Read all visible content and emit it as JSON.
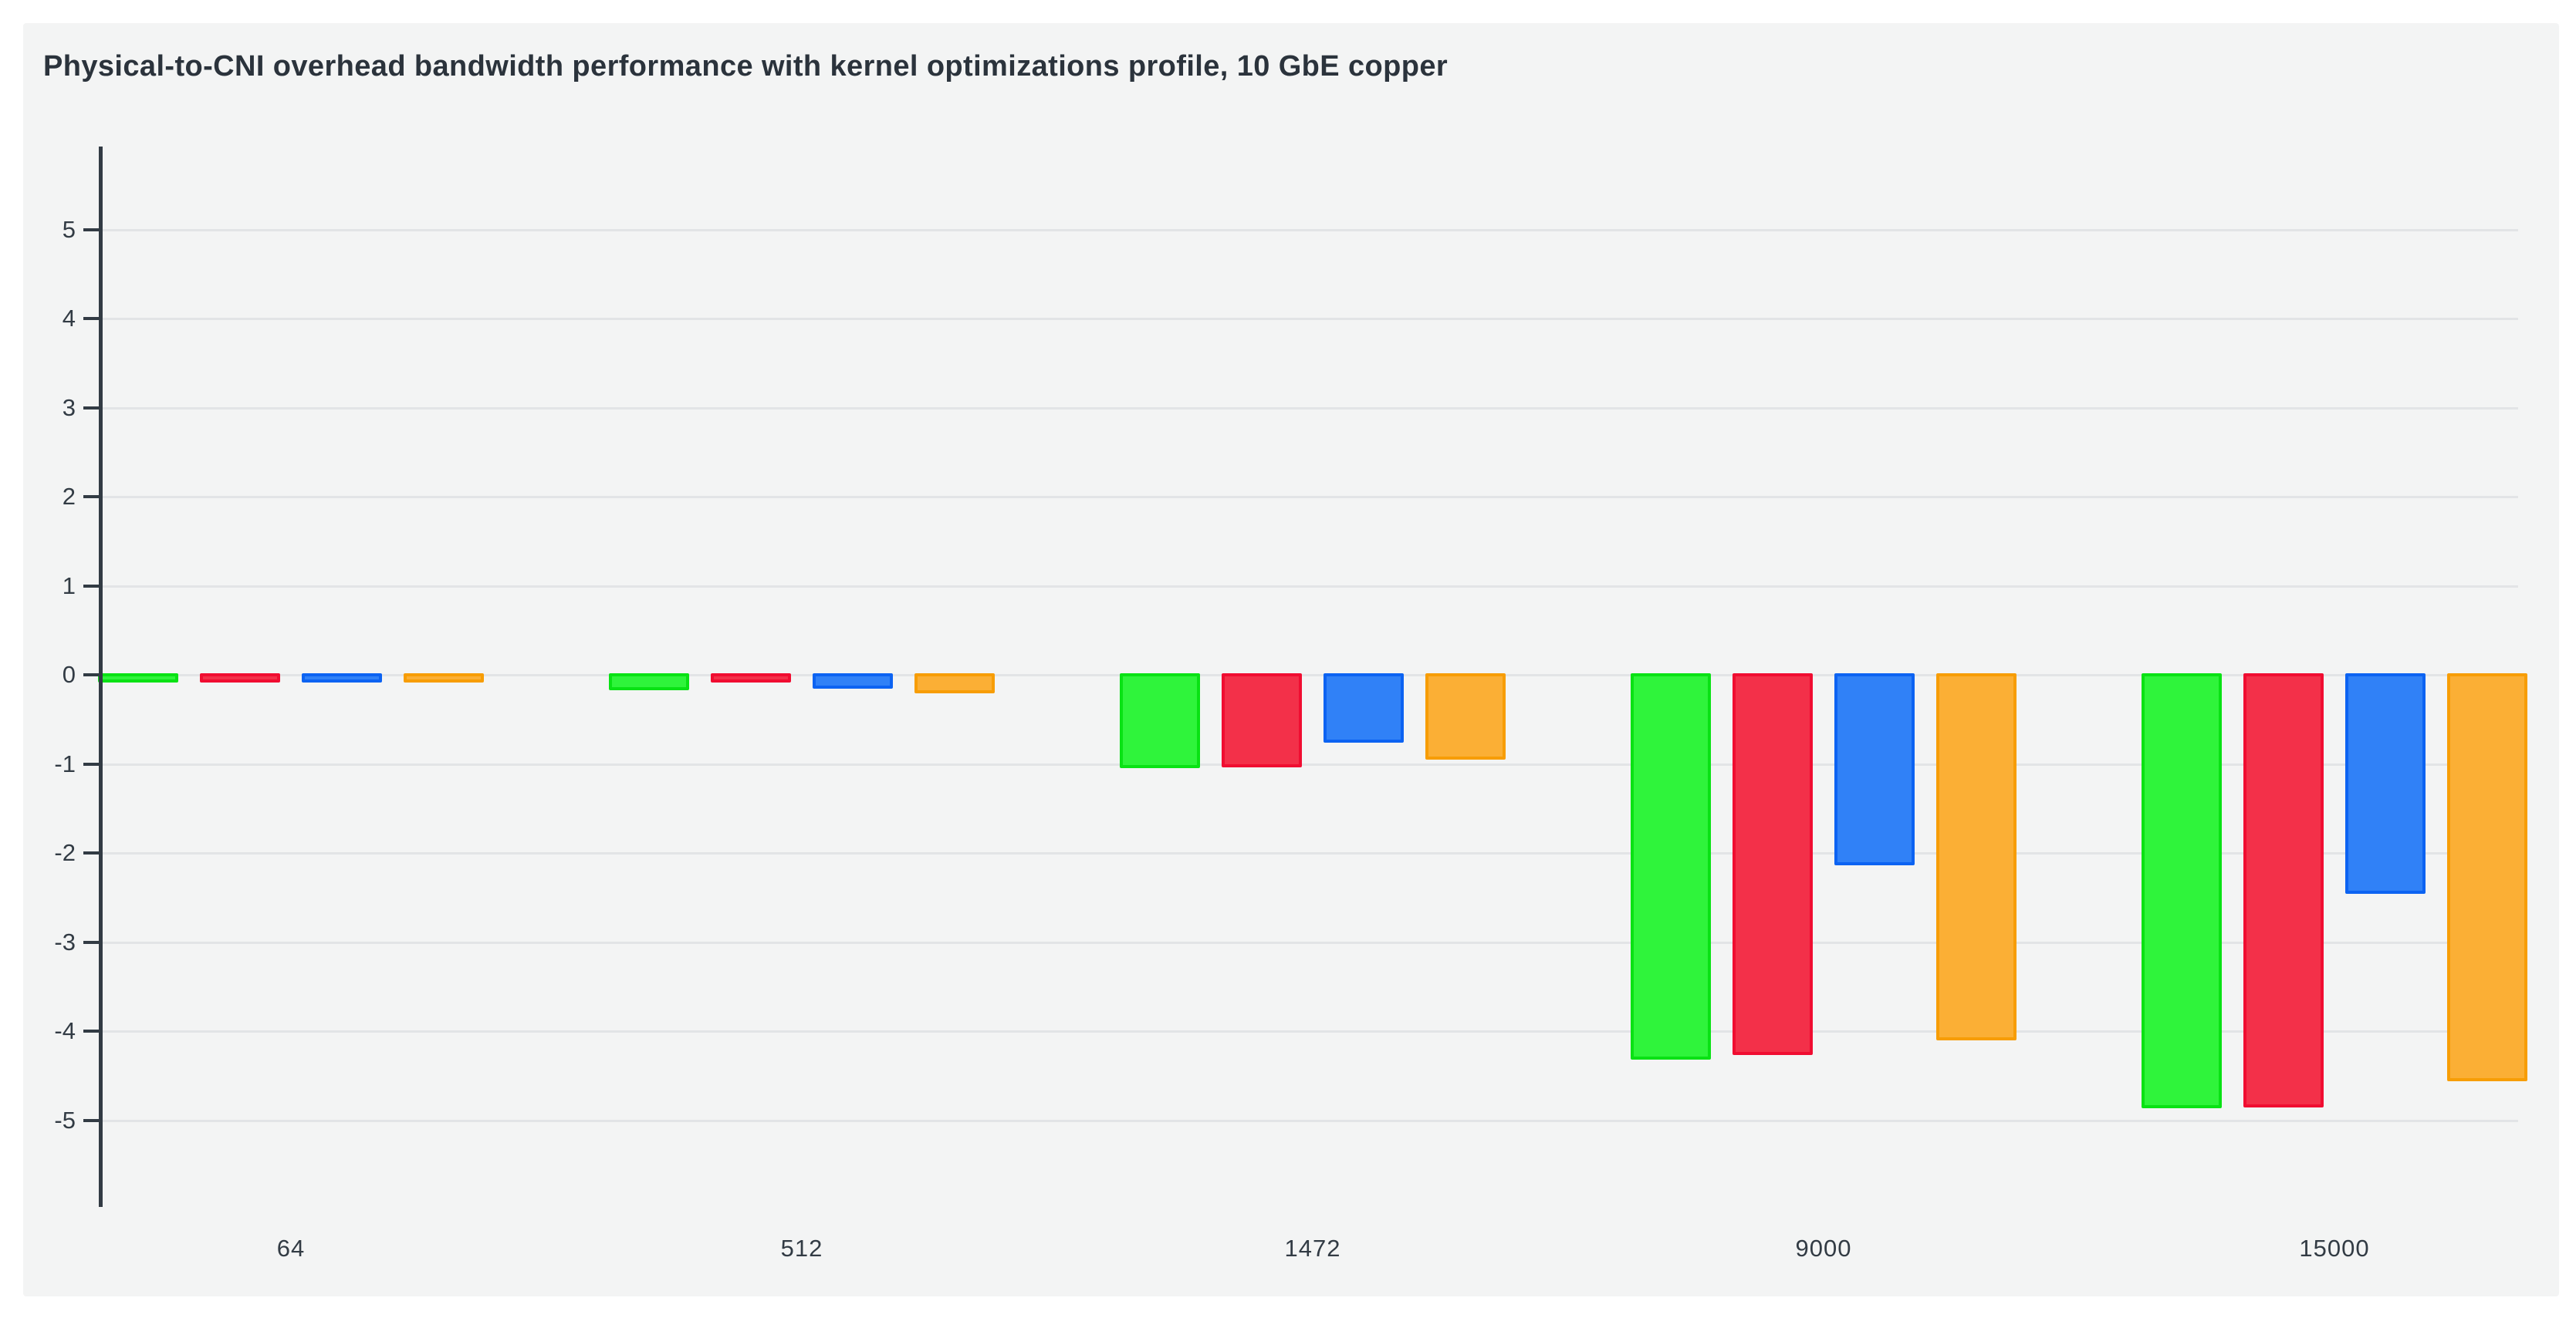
{
  "chart_data": {
    "type": "bar",
    "title": "Physical-to-CNI overhead bandwidth performance with kernel optimizations profile, 10 GbE copper",
    "categories": [
      "64",
      "512",
      "1472",
      "9000",
      "15000"
    ],
    "series": [
      {
        "name": "green",
        "color": "#2ff43b",
        "border_color": "#09e214",
        "values": [
          -0.02,
          -0.17,
          -1.05,
          -4.32,
          -4.87
        ]
      },
      {
        "name": "red",
        "color": "#f33049",
        "border_color": "#f00d31",
        "values": [
          -0.02,
          -0.05,
          -1.04,
          -4.27,
          -4.86
        ]
      },
      {
        "name": "blue",
        "color": "#3081f7",
        "border_color": "#0c63f2",
        "values": [
          -0.03,
          -0.16,
          -0.76,
          -2.14,
          -2.46
        ]
      },
      {
        "name": "orange",
        "color": "#fbaf35",
        "border_color": "#f79d05",
        "values": [
          -0.03,
          -0.21,
          -0.95,
          -4.1,
          -4.56
        ]
      }
    ],
    "xlabel": "",
    "ylabel": "",
    "ylim": [
      -6,
      6
    ],
    "y_ticks": [
      5,
      4,
      3,
      2,
      1,
      0,
      -1,
      -2,
      -3,
      -4,
      -5
    ],
    "grid": true,
    "legend": "none"
  },
  "colors": {
    "page_background": "#ffffff",
    "panel_background": "#f3f4f4",
    "gridline": "#e2e4e6",
    "axis": "#323b44",
    "text": "#2b333c"
  }
}
